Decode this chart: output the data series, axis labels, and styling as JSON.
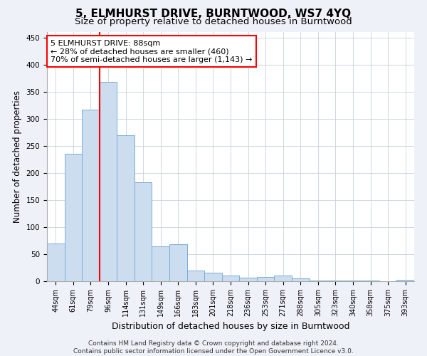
{
  "title": "5, ELMHURST DRIVE, BURNTWOOD, WS7 4YQ",
  "subtitle": "Size of property relative to detached houses in Burntwood",
  "xlabel": "Distribution of detached houses by size in Burntwood",
  "ylabel": "Number of detached properties",
  "categories": [
    "44sqm",
    "61sqm",
    "79sqm",
    "96sqm",
    "114sqm",
    "131sqm",
    "149sqm",
    "166sqm",
    "183sqm",
    "201sqm",
    "218sqm",
    "236sqm",
    "253sqm",
    "271sqm",
    "288sqm",
    "305sqm",
    "323sqm",
    "340sqm",
    "358sqm",
    "375sqm",
    "393sqm"
  ],
  "values": [
    70,
    235,
    317,
    368,
    270,
    183,
    65,
    68,
    20,
    16,
    10,
    7,
    8,
    10,
    5,
    1,
    1,
    1,
    1,
    0,
    3
  ],
  "bar_color": "#ccddf0",
  "bar_edge_color": "#7aadd4",
  "vline_x": 2.5,
  "vline_color": "red",
  "annotation_line1": "5 ELMHURST DRIVE: 88sqm",
  "annotation_line2": "← 28% of detached houses are smaller (460)",
  "annotation_line3": "70% of semi-detached houses are larger (1,143) →",
  "annotation_box_color": "white",
  "annotation_box_edge": "red",
  "ylim": [
    0,
    460
  ],
  "yticks": [
    0,
    50,
    100,
    150,
    200,
    250,
    300,
    350,
    400,
    450
  ],
  "footer_line1": "Contains HM Land Registry data © Crown copyright and database right 2024.",
  "footer_line2": "Contains public sector information licensed under the Open Government Licence v3.0.",
  "bg_color": "#eef2f8",
  "plot_bg_color": "#ffffff",
  "grid_color": "#c8d0dc",
  "title_fontsize": 11,
  "subtitle_fontsize": 9.5,
  "tick_fontsize": 7,
  "ylabel_fontsize": 8.5,
  "xlabel_fontsize": 9,
  "footer_fontsize": 6.5,
  "annotation_fontsize": 8
}
